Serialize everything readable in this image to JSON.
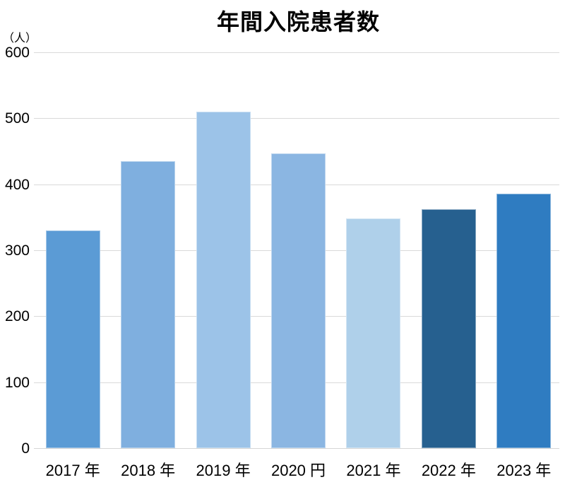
{
  "page": {
    "background": "#ffffff",
    "text_color": "#000000"
  },
  "chart_data": {
    "type": "bar",
    "title": "年間入院患者数",
    "unit_label": "（人）",
    "categories": [
      "2017 年",
      "2018 年",
      "2019 年",
      "2020 円",
      "2021 年",
      "2022 年",
      "2023 年"
    ],
    "values": [
      330,
      435,
      510,
      447,
      348,
      362,
      386
    ],
    "bar_colors": [
      "#5b9bd5",
      "#7fafdf",
      "#9cc3e8",
      "#8bb6e2",
      "#afd0ea",
      "#26608f",
      "#2f7cc1"
    ],
    "xlabel": "",
    "ylabel": "（人）",
    "ylim": [
      0,
      600
    ],
    "yticks": [
      0,
      100,
      200,
      300,
      400,
      500,
      600
    ],
    "grid": true,
    "grid_color": "#d9d9d9",
    "axis_color": "#d6d6d6",
    "legend_position": "none"
  }
}
